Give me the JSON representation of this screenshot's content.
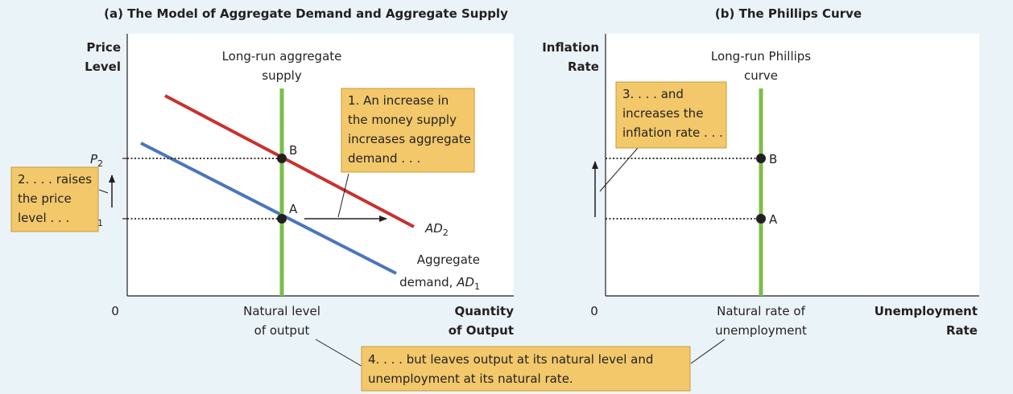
{
  "panel_a": {
    "title": "(a) The Model of Aggregate Demand and Aggregate Supply",
    "y_axis_title": [
      "Price",
      "Level"
    ],
    "x_axis_title": [
      "Quantity",
      "of Output"
    ],
    "origin": "0",
    "lras_label": [
      "Long-run aggregate",
      "supply"
    ],
    "x_tick_label": [
      "Natural level",
      "of output"
    ],
    "point_a": "A",
    "point_b": "B",
    "p1": {
      "main": "P",
      "sub": "1"
    },
    "p2": {
      "main": "P",
      "sub": "2"
    },
    "ad2_label": {
      "main": "AD",
      "sub": "2"
    },
    "ad1_label": [
      "Aggregate",
      "demand, ",
      "AD",
      "1"
    ],
    "note1": [
      "1. An increase in",
      "the money supply",
      "increases aggregate",
      "demand . . ."
    ],
    "note2": [
      "2. . . . raises",
      "the price",
      "level . . ."
    ]
  },
  "panel_b": {
    "title": "(b) The Phillips Curve",
    "y_axis_title": [
      "Inflation",
      "Rate"
    ],
    "x_axis_title": [
      "Unemployment",
      "Rate"
    ],
    "origin": "0",
    "lrpc_label": [
      "Long-run Phillips",
      "curve"
    ],
    "x_tick_label": [
      "Natural rate of",
      "unemployment"
    ],
    "point_a": "A",
    "point_b": "B",
    "note3": [
      "3. . . . and",
      "increases the",
      "inflation rate . . ."
    ]
  },
  "note4": [
    "4. . . . but leaves output at its natural level and",
    "unemployment at its natural rate."
  ],
  "colors": {
    "ad1": "#4a76bb",
    "ad2": "#c8312f",
    "vertical": "#7dbd4a",
    "note_fill": "#f2c86b",
    "note_stroke": "#c99a33",
    "panel_fill": "#ffffff",
    "background": "#eaf3f8"
  }
}
